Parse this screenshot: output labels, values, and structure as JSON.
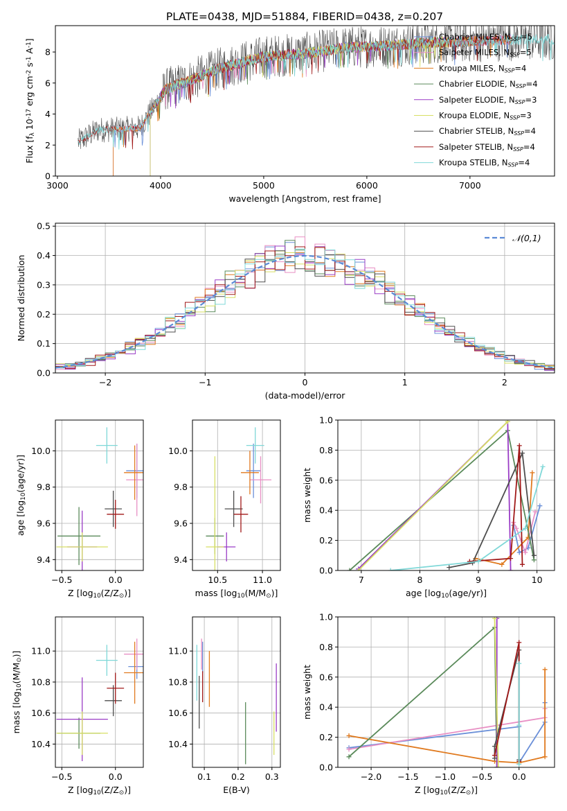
{
  "figure": {
    "title": "PLATE=0438, MJD=51884, FIBERID=0438, z=0.207"
  },
  "colors": {
    "Chabrier MILES": "#6a8fd8",
    "Salpeter MILES": "#e88fc4",
    "Kroupa MILES": "#e07a1f",
    "Chabrier ELODIE": "#5a8a5a",
    "Salpeter ELODIE": "#9a3cc6",
    "Kroupa ELODIE": "#d7df63",
    "Chabrier STELIB": "#4d4d4d",
    "Salpeter STELIB": "#a01818",
    "Kroupa STELIB": "#7fd8d8",
    "gauss": "#5b8ad6"
  },
  "chart_data": [
    {
      "id": "spectrum",
      "type": "line",
      "title": "PLATE=0438, MJD=51884, FIBERID=0438, z=0.207",
      "xlabel": "wavelength [Angstrom, rest frame]",
      "ylabel": "Flux [f$_\\lambda$ 10$^{-17}$ erg cm$^{-2}$ s$^{-1}$ A$^{-1}$]",
      "xlim": [
        2980,
        7820
      ],
      "ylim": [
        0,
        9.7
      ],
      "xticks": [
        3000,
        4000,
        5000,
        6000,
        7000
      ],
      "yticks": [
        0,
        2,
        4,
        6,
        8
      ],
      "legend_position": "top-right",
      "continuum": {
        "x": [
          3200,
          3400,
          3600,
          3800,
          3950,
          4050,
          4300,
          4600,
          5000,
          5400,
          5800,
          6200,
          6600,
          7000,
          7400,
          7800
        ],
        "y": [
          2.2,
          3.0,
          3.0,
          3.1,
          4.6,
          5.6,
          6.2,
          7.0,
          7.7,
          7.9,
          8.3,
          8.4,
          8.6,
          8.7,
          8.8,
          8.8
        ]
      },
      "series": [
        {
          "name": "Chabrier MILES, N$_{SSP}$=5",
          "x_start": 3540,
          "x_end": 7400
        },
        {
          "name": "Salpeter MILES, N$_{SSP}$=5",
          "x_start": 3540,
          "x_end": 7400
        },
        {
          "name": "Kroupa MILES, N$_{SSP}$=4",
          "x_start": 3540,
          "x_end": 7400
        },
        {
          "name": "Chabrier ELODIE, N$_{SSP}$=4",
          "x_start": 3900,
          "x_end": 6800
        },
        {
          "name": "Salpeter ELODIE, N$_{SSP}$=3",
          "x_start": 3900,
          "x_end": 6800
        },
        {
          "name": "Kroupa ELODIE, N$_{SSP}$=3",
          "x_start": 3900,
          "x_end": 6800
        },
        {
          "name": "Chabrier STELIB, N$_{SSP}$=4",
          "x_start": 3200,
          "x_end": 7820
        },
        {
          "name": "Salpeter STELIB, N$_{SSP}$=4",
          "x_start": 3200,
          "x_end": 7400
        },
        {
          "name": "Kroupa STELIB, N$_{SSP}$=4",
          "x_start": 3200,
          "x_end": 7820
        }
      ]
    },
    {
      "id": "residuals",
      "type": "bar",
      "xlabel": "(data-model)/error",
      "ylabel": "Normed distribution",
      "xlim": [
        -2.5,
        2.5
      ],
      "ylim": [
        0,
        0.51
      ],
      "xticks": [
        -2,
        -1,
        0,
        1,
        2
      ],
      "yticks": [
        0.0,
        0.1,
        0.2,
        0.3,
        0.4,
        0.5
      ],
      "grid": true,
      "bin_width": 0.1,
      "reference": {
        "name": "$\\mathcal{N}(0,1)$",
        "mean": 0,
        "std": 1
      },
      "legend_position": "top-right"
    },
    {
      "id": "z-age",
      "type": "scatter",
      "xlabel": "Z [log$_{10}$(Z/Z$_\\odot$)]",
      "ylabel": "age  [log$_{10}$(age/yr)]",
      "xlim": [
        -0.56,
        0.26
      ],
      "ylim": [
        9.34,
        10.17
      ],
      "xticks": [
        -0.5,
        0.0
      ],
      "yticks": [
        9.4,
        9.6,
        9.8,
        10.0
      ],
      "grid": true,
      "points": [
        {
          "series": "Chabrier MILES",
          "x": 0.2,
          "y": 9.89,
          "xerr": 0.1,
          "yerr": 0.15
        },
        {
          "series": "Salpeter MILES",
          "x": 0.2,
          "y": 9.84,
          "xerr": 0.1,
          "yerr": 0.2
        },
        {
          "series": "Kroupa MILES",
          "x": 0.18,
          "y": 9.88,
          "xerr": 0.1,
          "yerr": 0.15
        },
        {
          "series": "Chabrier ELODIE",
          "x": -0.34,
          "y": 9.53,
          "xerr": 0.2,
          "yerr": 0.16
        },
        {
          "series": "Salpeter ELODIE",
          "x": -0.31,
          "y": 9.47,
          "xerr": 0.14,
          "yerr": 0.2
        },
        {
          "series": "Kroupa ELODIE",
          "x": -0.31,
          "y": 9.47,
          "xerr": 0.24,
          "yerr": 0.08
        },
        {
          "series": "Chabrier STELIB",
          "x": -0.02,
          "y": 9.68,
          "xerr": 0.08,
          "yerr": 0.1
        },
        {
          "series": "Salpeter STELIB",
          "x": 0.0,
          "y": 9.65,
          "xerr": 0.08,
          "yerr": 0.08
        },
        {
          "series": "Kroupa STELIB",
          "x": -0.08,
          "y": 10.03,
          "xerr": 0.1,
          "yerr": 0.1
        }
      ]
    },
    {
      "id": "mass-age",
      "type": "scatter",
      "xlabel": "mass [log$_{10}$(M/M$_\\odot$)]",
      "ylabel": "",
      "xlim": [
        10.22,
        11.2
      ],
      "ylim": [
        9.34,
        10.17
      ],
      "xticks": [
        10.5,
        11.0
      ],
      "yticks": [
        9.4,
        9.6,
        9.8,
        10.0
      ],
      "grid": true,
      "points": [
        {
          "series": "Chabrier MILES",
          "x": 10.9,
          "y": 9.89,
          "xerr": 0.08,
          "yerr": 0.15
        },
        {
          "series": "Salpeter MILES",
          "x": 10.98,
          "y": 9.84,
          "xerr": 0.12,
          "yerr": 0.13
        },
        {
          "series": "Kroupa MILES",
          "x": 10.86,
          "y": 9.88,
          "xerr": 0.1,
          "yerr": 0.12
        },
        {
          "series": "Chabrier ELODIE",
          "x": 10.47,
          "y": 9.53,
          "xerr": 0.1,
          "yerr": 0.1
        },
        {
          "series": "Salpeter ELODIE",
          "x": 10.6,
          "y": 9.47,
          "xerr": 0.1,
          "yerr": 0.08
        },
        {
          "series": "Kroupa ELODIE",
          "x": 10.47,
          "y": 9.47,
          "xerr": 0.1,
          "yerr": 0.5
        },
        {
          "series": "Chabrier STELIB",
          "x": 10.68,
          "y": 9.68,
          "xerr": 0.1,
          "yerr": 0.1
        },
        {
          "series": "Salpeter STELIB",
          "x": 10.76,
          "y": 9.65,
          "xerr": 0.08,
          "yerr": 0.1
        },
        {
          "series": "Kroupa STELIB",
          "x": 10.92,
          "y": 10.03,
          "xerr": 0.1,
          "yerr": 0.1
        }
      ]
    },
    {
      "id": "age-weight",
      "type": "line",
      "xlabel": "age  [log$_{10}$(age/yr)]",
      "ylabel": "mass weight",
      "xlim": [
        6.6,
        10.3
      ],
      "ylim": [
        0,
        1
      ],
      "xticks": [
        7,
        8,
        9,
        10
      ],
      "yticks": [
        0.0,
        0.2,
        0.4,
        0.6,
        0.8,
        1.0
      ],
      "grid": true,
      "series": [
        {
          "name": "Chabrier MILES",
          "x": [
            9.6,
            9.7,
            9.85,
            10.05
          ],
          "y": [
            0.3,
            0.12,
            0.15,
            0.43
          ]
        },
        {
          "name": "Salpeter MILES",
          "x": [
            9.6,
            9.65,
            9.8,
            9.97
          ],
          "y": [
            0.32,
            0.28,
            0.12,
            0.39
          ]
        },
        {
          "name": "Kroupa MILES",
          "x": [
            8.95,
            9.4,
            9.85,
            9.92
          ],
          "y": [
            0.08,
            0.04,
            0.22,
            0.65
          ]
        },
        {
          "name": "Chabrier ELODIE",
          "x": [
            6.8,
            9.5,
            9.95
          ],
          "y": [
            0.0,
            0.93,
            0.07
          ]
        },
        {
          "name": "Salpeter ELODIE",
          "x": [
            6.95,
            9.5,
            9.55
          ],
          "y": [
            0.01,
            0.99,
            0.0
          ]
        },
        {
          "name": "Kroupa ELODIE",
          "x": [
            6.95,
            9.5
          ],
          "y": [
            0.0,
            0.99
          ]
        },
        {
          "name": "Chabrier STELIB",
          "x": [
            8.5,
            8.9,
            9.75,
            9.95
          ],
          "y": [
            0.02,
            0.05,
            0.78,
            0.1
          ]
        },
        {
          "name": "Salpeter STELIB",
          "x": [
            8.85,
            9.55,
            9.7,
            9.75
          ],
          "y": [
            0.06,
            0.08,
            0.83,
            0.04
          ]
        },
        {
          "name": "Kroupa STELIB",
          "x": [
            7.5,
            9.0,
            9.8,
            10.1
          ],
          "y": [
            0.0,
            0.06,
            0.28,
            0.69
          ]
        }
      ]
    },
    {
      "id": "z-mass",
      "type": "scatter",
      "xlabel": "Z [log$_{10}$(Z/Z$_\\odot$)]",
      "ylabel": "mass [log$_{10}$(M/M$_\\odot$)]",
      "xlim": [
        -0.56,
        0.26
      ],
      "ylim": [
        10.25,
        11.22
      ],
      "xticks": [
        -0.5,
        0.0
      ],
      "yticks": [
        10.4,
        10.6,
        10.8,
        11.0
      ],
      "grid": true,
      "points": [
        {
          "series": "Chabrier MILES",
          "x": 0.2,
          "y": 10.9,
          "xerr": 0.08,
          "yerr": 0.08
        },
        {
          "series": "Salpeter MILES",
          "x": 0.2,
          "y": 10.98,
          "xerr": 0.12,
          "yerr": 0.1
        },
        {
          "series": "Kroupa MILES",
          "x": 0.18,
          "y": 10.86,
          "xerr": 0.1,
          "yerr": 0.2
        },
        {
          "series": "Chabrier ELODIE",
          "x": -0.34,
          "y": 10.47,
          "xerr": 0.2,
          "yerr": 0.1
        },
        {
          "series": "Salpeter ELODIE",
          "x": -0.31,
          "y": 10.56,
          "xerr": 0.24,
          "yerr": 0.27
        },
        {
          "series": "Kroupa ELODIE",
          "x": -0.31,
          "y": 10.47,
          "xerr": 0.24,
          "yerr": 0.14
        },
        {
          "series": "Chabrier STELIB",
          "x": -0.02,
          "y": 10.68,
          "xerr": 0.08,
          "yerr": 0.1
        },
        {
          "series": "Salpeter STELIB",
          "x": 0.0,
          "y": 10.76,
          "xerr": 0.08,
          "yerr": 0.1
        },
        {
          "series": "Kroupa STELIB",
          "x": -0.08,
          "y": 10.94,
          "xerr": 0.1,
          "yerr": 0.1
        }
      ]
    },
    {
      "id": "ebv-mass",
      "type": "scatter",
      "xlabel": "E(B-V)",
      "ylabel": "",
      "xlim": [
        0.065,
        0.325
      ],
      "ylim": [
        10.25,
        11.22
      ],
      "xticks": [
        0.1,
        0.2,
        0.3
      ],
      "yticks": [
        10.4,
        10.6,
        10.8,
        11.0
      ],
      "grid": true,
      "points": [
        {
          "series": "Chabrier MILES",
          "x": 0.095,
          "y": 10.96,
          "yerr": 0.1
        },
        {
          "series": "Salpeter MILES",
          "x": 0.092,
          "y": 10.98,
          "yerr": 0.1
        },
        {
          "series": "Kroupa MILES",
          "x": 0.115,
          "y": 10.82,
          "yerr": 0.18
        },
        {
          "series": "Chabrier ELODIE",
          "x": 0.222,
          "y": 10.47,
          "yerr": 0.2
        },
        {
          "series": "Salpeter ELODIE",
          "x": 0.313,
          "y": 10.7,
          "yerr": 0.22
        },
        {
          "series": "Kroupa ELODIE",
          "x": 0.306,
          "y": 10.47,
          "yerr": 0.14
        },
        {
          "series": "Chabrier STELIB",
          "x": 0.085,
          "y": 10.67,
          "yerr": 0.17
        },
        {
          "series": "Salpeter STELIB",
          "x": 0.095,
          "y": 10.77,
          "yerr": 0.1
        },
        {
          "series": "Kroupa STELIB",
          "x": 0.078,
          "y": 10.86,
          "yerr": 0.18
        }
      ]
    },
    {
      "id": "z-weight",
      "type": "line",
      "xlabel": "Z [log$_{10}$(Z/Z$_\\odot$)]",
      "ylabel": "mass weight",
      "xlim": [
        -2.45,
        0.48
      ],
      "ylim": [
        0,
        1
      ],
      "xticks": [
        -2.0,
        -1.5,
        -1.0,
        -0.5,
        0.0
      ],
      "yticks": [
        0.0,
        0.2,
        0.4,
        0.6,
        0.8,
        1.0
      ],
      "grid": true,
      "series": [
        {
          "name": "Chabrier MILES",
          "x": [
            -2.3,
            0.0,
            0.0,
            0.35,
            0.35
          ],
          "y": [
            0.13,
            0.27,
            0.03,
            0.3,
            0.43
          ]
        },
        {
          "name": "Salpeter MILES",
          "x": [
            -2.3,
            0.35,
            0.35
          ],
          "y": [
            0.12,
            0.33,
            0.39
          ]
        },
        {
          "name": "Kroupa MILES",
          "x": [
            -2.3,
            -0.33,
            0.0,
            0.35,
            0.35
          ],
          "y": [
            0.21,
            0.04,
            0.03,
            0.07,
            0.65
          ]
        },
        {
          "name": "Chabrier ELODIE",
          "x": [
            -2.3,
            -0.33,
            -0.3
          ],
          "y": [
            0.07,
            0.93,
            0.0
          ]
        },
        {
          "name": "Salpeter ELODIE",
          "x": [
            -0.3,
            -0.3
          ],
          "y": [
            0.99,
            0.0
          ]
        },
        {
          "name": "Kroupa ELODIE",
          "x": [
            -0.33,
            -0.28
          ],
          "y": [
            0.99,
            0.0
          ]
        },
        {
          "name": "Chabrier STELIB",
          "x": [
            -0.33,
            -0.33,
            0.0,
            0.0
          ],
          "y": [
            0.06,
            0.14,
            0.78,
            0.05
          ]
        },
        {
          "name": "Salpeter STELIB",
          "x": [
            -0.33,
            0.0,
            0.0
          ],
          "y": [
            0.08,
            0.83,
            0.04
          ]
        },
        {
          "name": "Kroupa STELIB",
          "x": [
            0.0,
            0.0,
            0.0
          ],
          "y": [
            0.02,
            0.28,
            0.69
          ]
        }
      ]
    }
  ]
}
